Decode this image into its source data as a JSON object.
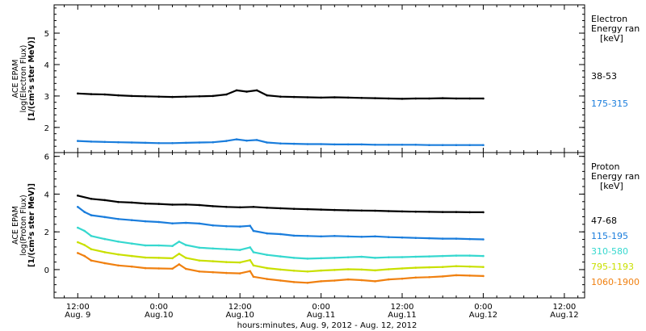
{
  "chart_data": [
    {
      "type": "scatter",
      "panel": "electron",
      "ylabel_lines": [
        "ACE EPAM",
        "log(Electron Flux)",
        "[1/(cm²s ster MeV)]"
      ],
      "yticks": [
        2,
        3,
        4,
        5
      ],
      "ylim": [
        1.2,
        5.9
      ],
      "legend_title": [
        "Electron",
        "Energy ran",
        "[keV]"
      ],
      "legend_position": "right",
      "series": [
        {
          "name": "38-53",
          "color": "#000000",
          "points": [
            [
              0,
              3.08
            ],
            [
              2,
              3.06
            ],
            [
              4,
              3.05
            ],
            [
              6,
              3.02
            ],
            [
              8,
              3.0
            ],
            [
              10,
              2.99
            ],
            [
              12,
              2.98
            ],
            [
              14,
              2.97
            ],
            [
              16,
              2.98
            ],
            [
              18,
              2.99
            ],
            [
              20,
              3.0
            ],
            [
              22,
              3.05
            ],
            [
              23.5,
              3.18
            ],
            [
              25,
              3.14
            ],
            [
              26.5,
              3.18
            ],
            [
              28,
              3.02
            ],
            [
              30,
              2.98
            ],
            [
              32,
              2.97
            ],
            [
              34,
              2.96
            ],
            [
              36,
              2.95
            ],
            [
              38,
              2.96
            ],
            [
              40,
              2.95
            ],
            [
              42,
              2.94
            ],
            [
              44,
              2.93
            ],
            [
              46,
              2.92
            ],
            [
              48,
              2.91
            ],
            [
              50,
              2.92
            ],
            [
              52,
              2.92
            ],
            [
              54,
              2.93
            ],
            [
              56,
              2.92
            ],
            [
              58,
              2.92
            ],
            [
              60,
              2.92
            ]
          ]
        },
        {
          "name": "175-315",
          "color": "#1a7ddc",
          "points": [
            [
              0,
              1.57
            ],
            [
              2,
              1.55
            ],
            [
              4,
              1.54
            ],
            [
              6,
              1.53
            ],
            [
              8,
              1.52
            ],
            [
              10,
              1.51
            ],
            [
              12,
              1.5
            ],
            [
              14,
              1.5
            ],
            [
              16,
              1.51
            ],
            [
              18,
              1.52
            ],
            [
              20,
              1.53
            ],
            [
              22,
              1.57
            ],
            [
              23.5,
              1.62
            ],
            [
              25,
              1.58
            ],
            [
              26.5,
              1.6
            ],
            [
              28,
              1.52
            ],
            [
              30,
              1.49
            ],
            [
              32,
              1.48
            ],
            [
              34,
              1.47
            ],
            [
              36,
              1.47
            ],
            [
              38,
              1.46
            ],
            [
              40,
              1.46
            ],
            [
              42,
              1.46
            ],
            [
              44,
              1.45
            ],
            [
              46,
              1.45
            ],
            [
              48,
              1.45
            ],
            [
              50,
              1.45
            ],
            [
              52,
              1.44
            ],
            [
              54,
              1.44
            ],
            [
              56,
              1.44
            ],
            [
              58,
              1.44
            ],
            [
              60,
              1.44
            ]
          ]
        }
      ]
    },
    {
      "type": "scatter",
      "panel": "proton",
      "ylabel_lines": [
        "ACE EPAM",
        "log(Proton Flux)",
        "[1/(cm²s ster MeV)]"
      ],
      "yticks": [
        0,
        2,
        4,
        6
      ],
      "ylim": [
        -1.5,
        6.2
      ],
      "legend_title": [
        "Proton",
        "Energy ran",
        "[keV]"
      ],
      "legend_position": "right",
      "series": [
        {
          "name": "47-68",
          "color": "#000000",
          "points": [
            [
              0,
              3.92
            ],
            [
              2,
              3.75
            ],
            [
              4,
              3.68
            ],
            [
              6,
              3.58
            ],
            [
              8,
              3.55
            ],
            [
              10,
              3.5
            ],
            [
              12,
              3.48
            ],
            [
              14,
              3.44
            ],
            [
              16,
              3.45
            ],
            [
              18,
              3.42
            ],
            [
              20,
              3.36
            ],
            [
              22,
              3.32
            ],
            [
              24,
              3.3
            ],
            [
              26,
              3.32
            ],
            [
              28,
              3.28
            ],
            [
              30,
              3.25
            ],
            [
              32,
              3.22
            ],
            [
              34,
              3.2
            ],
            [
              36,
              3.18
            ],
            [
              38,
              3.16
            ],
            [
              40,
              3.14
            ],
            [
              42,
              3.13
            ],
            [
              44,
              3.12
            ],
            [
              46,
              3.1
            ],
            [
              48,
              3.08
            ],
            [
              50,
              3.07
            ],
            [
              52,
              3.06
            ],
            [
              54,
              3.05
            ],
            [
              56,
              3.05
            ],
            [
              58,
              3.04
            ],
            [
              60,
              3.04
            ]
          ]
        },
        {
          "name": "115-195",
          "color": "#1a7ddc",
          "points": [
            [
              0,
              3.32
            ],
            [
              1,
              3.05
            ],
            [
              2,
              2.88
            ],
            [
              4,
              2.78
            ],
            [
              6,
              2.68
            ],
            [
              8,
              2.62
            ],
            [
              10,
              2.56
            ],
            [
              12,
              2.52
            ],
            [
              14,
              2.45
            ],
            [
              16,
              2.48
            ],
            [
              18,
              2.44
            ],
            [
              20,
              2.34
            ],
            [
              22,
              2.3
            ],
            [
              24,
              2.28
            ],
            [
              25.5,
              2.32
            ],
            [
              26,
              2.05
            ],
            [
              28,
              1.92
            ],
            [
              30,
              1.88
            ],
            [
              32,
              1.8
            ],
            [
              34,
              1.78
            ],
            [
              36,
              1.76
            ],
            [
              38,
              1.78
            ],
            [
              40,
              1.76
            ],
            [
              42,
              1.74
            ],
            [
              44,
              1.76
            ],
            [
              46,
              1.72
            ],
            [
              48,
              1.7
            ],
            [
              50,
              1.68
            ],
            [
              52,
              1.66
            ],
            [
              54,
              1.64
            ],
            [
              56,
              1.64
            ],
            [
              58,
              1.62
            ],
            [
              60,
              1.6
            ]
          ]
        },
        {
          "name": "310-580",
          "color": "#36d8cf",
          "points": [
            [
              0,
              2.22
            ],
            [
              1,
              2.05
            ],
            [
              2,
              1.78
            ],
            [
              4,
              1.62
            ],
            [
              6,
              1.48
            ],
            [
              8,
              1.38
            ],
            [
              10,
              1.28
            ],
            [
              12,
              1.28
            ],
            [
              14,
              1.25
            ],
            [
              15,
              1.48
            ],
            [
              16,
              1.3
            ],
            [
              18,
              1.16
            ],
            [
              20,
              1.12
            ],
            [
              22,
              1.08
            ],
            [
              24,
              1.04
            ],
            [
              25.5,
              1.18
            ],
            [
              26,
              0.92
            ],
            [
              28,
              0.78
            ],
            [
              30,
              0.7
            ],
            [
              32,
              0.62
            ],
            [
              34,
              0.58
            ],
            [
              36,
              0.6
            ],
            [
              38,
              0.62
            ],
            [
              40,
              0.65
            ],
            [
              42,
              0.68
            ],
            [
              44,
              0.62
            ],
            [
              46,
              0.65
            ],
            [
              48,
              0.66
            ],
            [
              50,
              0.68
            ],
            [
              52,
              0.7
            ],
            [
              54,
              0.72
            ],
            [
              56,
              0.74
            ],
            [
              58,
              0.74
            ],
            [
              60,
              0.72
            ]
          ]
        },
        {
          "name": "795-1193",
          "color": "#c9e000",
          "points": [
            [
              0,
              1.45
            ],
            [
              1,
              1.3
            ],
            [
              2,
              1.08
            ],
            [
              4,
              0.92
            ],
            [
              6,
              0.8
            ],
            [
              8,
              0.72
            ],
            [
              10,
              0.64
            ],
            [
              12,
              0.62
            ],
            [
              14,
              0.6
            ],
            [
              15,
              0.84
            ],
            [
              16,
              0.62
            ],
            [
              18,
              0.48
            ],
            [
              20,
              0.44
            ],
            [
              22,
              0.4
            ],
            [
              24,
              0.38
            ],
            [
              25.5,
              0.5
            ],
            [
              26,
              0.22
            ],
            [
              28,
              0.08
            ],
            [
              30,
              0.0
            ],
            [
              32,
              -0.06
            ],
            [
              34,
              -0.1
            ],
            [
              36,
              -0.05
            ],
            [
              38,
              -0.02
            ],
            [
              40,
              0.02
            ],
            [
              42,
              0.0
            ],
            [
              44,
              -0.04
            ],
            [
              46,
              0.02
            ],
            [
              48,
              0.06
            ],
            [
              50,
              0.1
            ],
            [
              52,
              0.12
            ],
            [
              54,
              0.14
            ],
            [
              56,
              0.18
            ],
            [
              58,
              0.16
            ],
            [
              60,
              0.14
            ]
          ]
        },
        {
          "name": "1060-1900",
          "color": "#f08010",
          "points": [
            [
              0,
              0.88
            ],
            [
              1,
              0.72
            ],
            [
              2,
              0.48
            ],
            [
              4,
              0.34
            ],
            [
              6,
              0.22
            ],
            [
              8,
              0.16
            ],
            [
              10,
              0.08
            ],
            [
              12,
              0.06
            ],
            [
              14,
              0.05
            ],
            [
              15,
              0.28
            ],
            [
              16,
              0.04
            ],
            [
              18,
              -0.1
            ],
            [
              20,
              -0.14
            ],
            [
              22,
              -0.18
            ],
            [
              24,
              -0.2
            ],
            [
              25.5,
              -0.08
            ],
            [
              26,
              -0.38
            ],
            [
              28,
              -0.5
            ],
            [
              30,
              -0.58
            ],
            [
              32,
              -0.66
            ],
            [
              34,
              -0.7
            ],
            [
              36,
              -0.62
            ],
            [
              38,
              -0.58
            ],
            [
              40,
              -0.52
            ],
            [
              42,
              -0.56
            ],
            [
              44,
              -0.62
            ],
            [
              46,
              -0.52
            ],
            [
              48,
              -0.48
            ],
            [
              50,
              -0.42
            ],
            [
              52,
              -0.4
            ],
            [
              54,
              -0.36
            ],
            [
              56,
              -0.3
            ],
            [
              58,
              -0.32
            ],
            [
              60,
              -0.34
            ]
          ]
        }
      ]
    }
  ],
  "xaxis": {
    "label": "hours:minutes, Aug.  9, 2012 - Aug. 12, 2012",
    "xlim_hours": [
      -3.5,
      75
    ],
    "ticks": [
      {
        "hours": 0,
        "time": "12:00",
        "date": "Aug. 9"
      },
      {
        "hours": 12,
        "time": "0:00",
        "date": "Aug.10"
      },
      {
        "hours": 24,
        "time": "12:00",
        "date": "Aug.10"
      },
      {
        "hours": 36,
        "time": "0:00",
        "date": "Aug.11"
      },
      {
        "hours": 48,
        "time": "12:00",
        "date": "Aug.11"
      },
      {
        "hours": 60,
        "time": "0:00",
        "date": "Aug.12"
      },
      {
        "hours": 72,
        "time": "12:00",
        "date": "Aug.12"
      }
    ]
  }
}
